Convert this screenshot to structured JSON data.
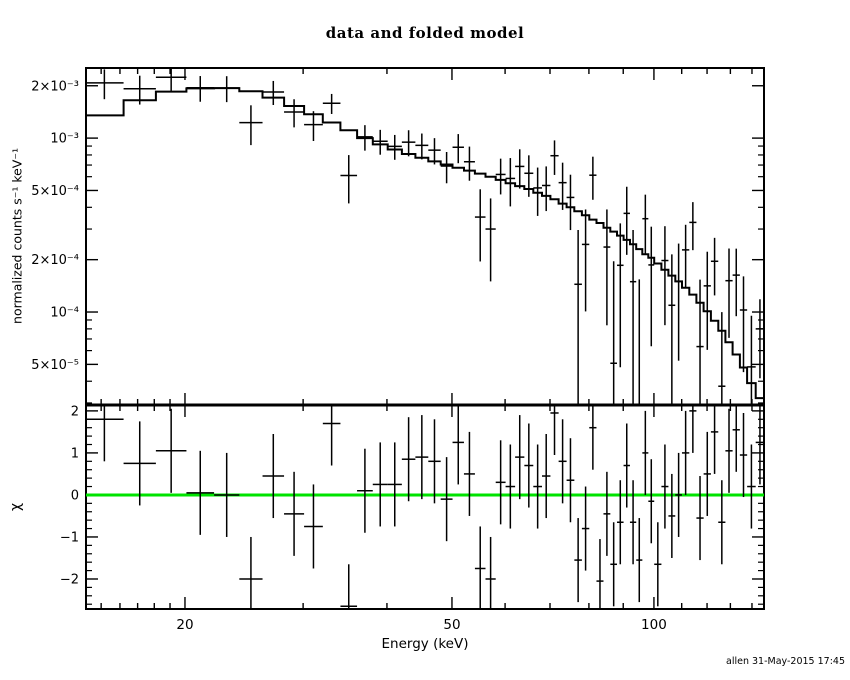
{
  "window": {
    "background": "#ffffff",
    "foreground": "#000000"
  },
  "annotation": {
    "credit": "allen 31-May-2015 17:45"
  },
  "chart_data": {
    "type": "line",
    "subtype": "xspec-counts-spectrum-with-residuals",
    "title": "data and folded model",
    "xlabel": "Energy (keV)",
    "xscale": "log",
    "xlim": [
      14.24,
      145.9
    ],
    "x_major_ticks": [
      {
        "v": 20,
        "label": "20"
      },
      {
        "v": 50,
        "label": "50"
      },
      {
        "v": 100,
        "label": "100"
      }
    ],
    "x_minor_ticks": [
      15,
      16,
      17,
      18,
      19,
      30,
      40,
      60,
      70,
      80,
      90,
      110,
      120,
      130,
      140
    ],
    "top_panel": {
      "ylabel": "normalized counts s⁻¹ keV⁻¹",
      "yscale": "log",
      "ylim": [
        2.92e-05,
        0.00253
      ],
      "y_major_ticks": [
        {
          "v": 0.002,
          "label": "2×10⁻³"
        },
        {
          "v": 0.001,
          "label": "10⁻³"
        },
        {
          "v": 0.0005,
          "label": "5×10⁻⁴"
        },
        {
          "v": 0.0002,
          "label": "2×10⁻⁴"
        },
        {
          "v": 0.0001,
          "label": "10⁻⁴"
        },
        {
          "v": 5e-05,
          "label": "5×10⁻⁵"
        }
      ],
      "y_minor_ticks": [
        3e-05,
        4e-05,
        6e-05,
        7e-05,
        8e-05,
        9e-05,
        0.0003,
        0.0004,
        0.0006,
        0.0007,
        0.0008,
        0.0009
      ],
      "model_color": "#000000",
      "data_color": "#000000"
    },
    "bottom_panel": {
      "ylabel": "χ",
      "yscale": "linear",
      "ylim": [
        -2.714,
        2.14
      ],
      "y_major_ticks": [
        {
          "v": 2,
          "label": "2"
        },
        {
          "v": 1,
          "label": "1"
        },
        {
          "v": 0,
          "label": "0"
        },
        {
          "v": -1,
          "label": "−1"
        },
        {
          "v": -2,
          "label": "−2"
        }
      ],
      "y_minor_ticks": [
        -2.6,
        -2.4,
        -2.2,
        -1.8,
        -1.6,
        -1.4,
        -1.2,
        -0.8,
        -0.6,
        -0.4,
        -0.2,
        0.2,
        0.4,
        0.6,
        0.8,
        1.2,
        1.4,
        1.6,
        1.8
      ],
      "zero_line_color": "#00e300",
      "chi_error": 1.0
    },
    "bins": {
      "comment_units": "edges in keV; model in counts/s/keV; data = model + chi*sigma_frac*model; sigma = sigma_frac*model",
      "edges": [
        14.2,
        16.2,
        18.1,
        20.1,
        22.1,
        24.1,
        26.1,
        28.1,
        30.1,
        32.1,
        34.1,
        36.1,
        38.1,
        40.1,
        42.1,
        44.1,
        46.1,
        48.1,
        50.1,
        52.1,
        54.1,
        56.1,
        58.1,
        60.1,
        62.1,
        64.1,
        66.1,
        68.1,
        70.1,
        72.1,
        74.1,
        76.1,
        78.1,
        80.1,
        82.1,
        84.1,
        86.1,
        88.1,
        90.1,
        92.1,
        94.1,
        96.1,
        98.1,
        100.1,
        102.6,
        105.1,
        107.6,
        110.1,
        112.9,
        115.7,
        118.6,
        121.6,
        124.7,
        127.8,
        131.0,
        134.3,
        137.7,
        141.8,
        146.0
      ],
      "model": [
        0.00135,
        0.00165,
        0.00185,
        0.00193,
        0.00194,
        0.00186,
        0.00171,
        0.00153,
        0.00137,
        0.00123,
        0.00111,
        0.001,
        0.00092,
        0.00086,
        0.00081,
        0.00077,
        0.000735,
        0.000705,
        0.000675,
        0.00065,
        0.000625,
        0.0006,
        0.000575,
        0.00055,
        0.00053,
        0.00051,
        0.000485,
        0.000465,
        0.000445,
        0.00042,
        0.0004,
        0.00038,
        0.00036,
        0.00034,
        0.000325,
        0.000305,
        0.00029,
        0.000275,
        0.00026,
        0.000245,
        0.00023,
        0.000215,
        0.000205,
        0.00019,
        0.000175,
        0.000162,
        0.00015,
        0.000138,
        0.000126,
        0.000113,
        0.000101,
        8.9e-05,
        7.8e-05,
        6.7e-05,
        5.7e-05,
        4.8e-05,
        3.9e-05,
        3.2e-05
      ],
      "chi": [
        1.8,
        0.75,
        1.05,
        0.05,
        0.0,
        -2.0,
        0.45,
        -0.45,
        -0.75,
        1.7,
        -2.65,
        0.1,
        0.25,
        0.25,
        0.85,
        0.9,
        0.8,
        -0.1,
        1.25,
        0.5,
        -1.75,
        -2.0,
        0.3,
        0.2,
        0.9,
        0.7,
        0.2,
        0.45,
        1.95,
        0.8,
        0.35,
        -1.55,
        -0.8,
        1.6,
        -2.05,
        -0.45,
        -1.65,
        -0.65,
        0.7,
        -0.65,
        -1.55,
        1.0,
        -0.15,
        -1.65,
        0.2,
        -0.5,
        0.0,
        1.0,
        2.0,
        -0.55,
        0.5,
        1.5,
        -0.65,
        1.05,
        1.55,
        0.95,
        0.2,
        1.25
      ],
      "sigma_frac": [
        0.3,
        0.22,
        0.2,
        0.17,
        0.17,
        0.17,
        0.17,
        0.17,
        0.17,
        0.17,
        0.17,
        0.17,
        0.17,
        0.17,
        0.2,
        0.2,
        0.2,
        0.2,
        0.25,
        0.25,
        0.25,
        0.25,
        0.25,
        0.33,
        0.33,
        0.33,
        0.33,
        0.33,
        0.4,
        0.4,
        0.4,
        0.4,
        0.4,
        0.5,
        0.5,
        0.5,
        0.5,
        0.5,
        0.6,
        0.6,
        0.6,
        0.6,
        0.6,
        0.65,
        0.65,
        0.65,
        0.65,
        0.65,
        0.8,
        0.8,
        0.8,
        0.8,
        0.8,
        1.2,
        1.2,
        1.2,
        1.2,
        1.2
      ]
    }
  }
}
